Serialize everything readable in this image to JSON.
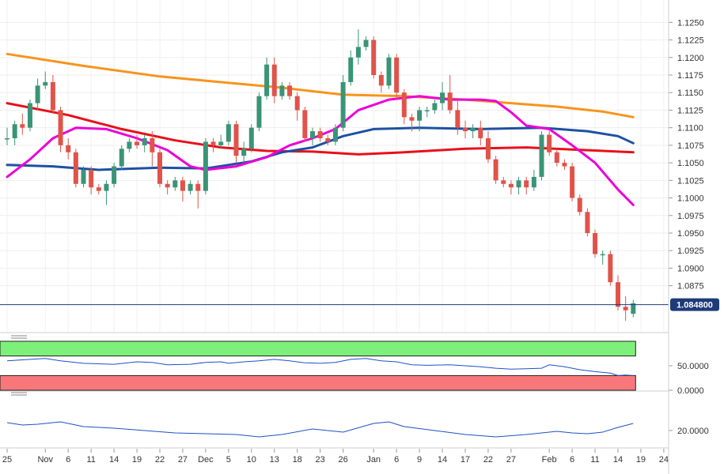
{
  "chart_data": {
    "type": "candlestick",
    "last_price_label": "1.084800",
    "last_price": 1.0848,
    "y_axis": {
      "ylim": [
        1.0815,
        1.1265
      ],
      "ticks": [
        "1.1250",
        "1.1225",
        "1.1200",
        "1.1175",
        "1.1150",
        "1.1125",
        "1.1100",
        "1.1075",
        "1.1050",
        "1.1025",
        "1.1000",
        "1.0975",
        "1.0950",
        "1.0925",
        "1.0900",
        "1.0875"
      ]
    },
    "x_axis": {
      "ticks": [
        {
          "label": "25",
          "i": 0
        },
        {
          "label": "Nov",
          "i": 5
        },
        {
          "label": "6",
          "i": 8
        },
        {
          "label": "11",
          "i": 11
        },
        {
          "label": "14",
          "i": 14
        },
        {
          "label": "19",
          "i": 17
        },
        {
          "label": "22",
          "i": 20
        },
        {
          "label": "27",
          "i": 23
        },
        {
          "label": "Dec",
          "i": 26
        },
        {
          "label": "5",
          "i": 29
        },
        {
          "label": "10",
          "i": 32
        },
        {
          "label": "13",
          "i": 35
        },
        {
          "label": "18",
          "i": 38
        },
        {
          "label": "23",
          "i": 41
        },
        {
          "label": "26",
          "i": 44
        },
        {
          "label": "Jan",
          "i": 48
        },
        {
          "label": "6",
          "i": 51
        },
        {
          "label": "9",
          "i": 54
        },
        {
          "label": "14",
          "i": 57
        },
        {
          "label": "17",
          "i": 60
        },
        {
          "label": "22",
          "i": 63
        },
        {
          "label": "27",
          "i": 66
        },
        {
          "label": "Feb",
          "i": 71
        },
        {
          "label": "6",
          "i": 74
        },
        {
          "label": "11",
          "i": 77
        },
        {
          "label": "14",
          "i": 80
        },
        {
          "label": "19",
          "i": 83
        },
        {
          "label": "24",
          "i": 86
        }
      ]
    },
    "candles": [
      [
        1.1085,
        1.1085,
        1.1075,
        1.11
      ],
      [
        1.1085,
        1.1105,
        1.1075,
        1.111
      ],
      [
        1.1105,
        1.11,
        1.109,
        1.112
      ],
      [
        1.11,
        1.1135,
        1.1095,
        1.114
      ],
      [
        1.1135,
        1.116,
        1.1125,
        1.117
      ],
      [
        1.116,
        1.1165,
        1.1155,
        1.118
      ],
      [
        1.1165,
        1.1125,
        1.112,
        1.1175
      ],
      [
        1.1125,
        1.1075,
        1.1065,
        1.113
      ],
      [
        1.1075,
        1.1065,
        1.1055,
        1.1085
      ],
      [
        1.1065,
        1.102,
        1.1015,
        1.107
      ],
      [
        1.102,
        1.104,
        1.1015,
        1.1045
      ],
      [
        1.104,
        1.1015,
        1.1005,
        1.1045
      ],
      [
        1.1015,
        1.101,
        1.1005,
        1.102
      ],
      [
        1.101,
        1.102,
        1.099,
        1.1025
      ],
      [
        1.102,
        1.1045,
        1.1015,
        1.105
      ],
      [
        1.1045,
        1.107,
        1.104,
        1.1075
      ],
      [
        1.107,
        1.108,
        1.1065,
        1.1085
      ],
      [
        1.108,
        1.1075,
        1.107,
        1.109
      ],
      [
        1.1075,
        1.1085,
        1.1065,
        1.109
      ],
      [
        1.1085,
        1.1065,
        1.1045,
        1.1095
      ],
      [
        1.1065,
        1.102,
        1.1015,
        1.107
      ],
      [
        1.102,
        1.1015,
        1.1005,
        1.1025
      ],
      [
        1.1015,
        1.1025,
        1.101,
        1.103
      ],
      [
        1.1025,
        1.101,
        1.0995,
        1.103
      ],
      [
        1.101,
        1.102,
        1.1005,
        1.1025
      ],
      [
        1.102,
        1.101,
        1.0985,
        1.1025
      ],
      [
        1.101,
        1.108,
        1.1005,
        1.1085
      ],
      [
        1.108,
        1.1075,
        1.1065,
        1.1085
      ],
      [
        1.1075,
        1.108,
        1.107,
        1.109
      ],
      [
        1.108,
        1.1105,
        1.1075,
        1.111
      ],
      [
        1.1105,
        1.106,
        1.105,
        1.111
      ],
      [
        1.106,
        1.107,
        1.105,
        1.108
      ],
      [
        1.107,
        1.11,
        1.1065,
        1.1105
      ],
      [
        1.11,
        1.1145,
        1.1095,
        1.115
      ],
      [
        1.1145,
        1.119,
        1.114,
        1.12
      ],
      [
        1.119,
        1.1145,
        1.1135,
        1.12
      ],
      [
        1.1145,
        1.116,
        1.114,
        1.1165
      ],
      [
        1.116,
        1.1145,
        1.114,
        1.1165
      ],
      [
        1.1145,
        1.1125,
        1.111,
        1.115
      ],
      [
        1.1125,
        1.1085,
        1.108,
        1.113
      ],
      [
        1.1085,
        1.1095,
        1.1075,
        1.11
      ],
      [
        1.1095,
        1.1085,
        1.108,
        1.11
      ],
      [
        1.1085,
        1.108,
        1.1075,
        1.109
      ],
      [
        1.108,
        1.11,
        1.1075,
        1.1105
      ],
      [
        1.11,
        1.1165,
        1.1095,
        1.1175
      ],
      [
        1.1165,
        1.12,
        1.116,
        1.121
      ],
      [
        1.12,
        1.1215,
        1.119,
        1.124
      ],
      [
        1.1215,
        1.1225,
        1.121,
        1.123
      ],
      [
        1.1225,
        1.1175,
        1.117,
        1.123
      ],
      [
        1.1175,
        1.116,
        1.115,
        1.118
      ],
      [
        1.116,
        1.12,
        1.1155,
        1.1205
      ],
      [
        1.12,
        1.115,
        1.114,
        1.1205
      ],
      [
        1.115,
        1.1115,
        1.1105,
        1.1155
      ],
      [
        1.1115,
        1.111,
        1.1095,
        1.112
      ],
      [
        1.111,
        1.1125,
        1.1095,
        1.113
      ],
      [
        1.1125,
        1.1125,
        1.1115,
        1.113
      ],
      [
        1.1125,
        1.1135,
        1.112,
        1.114
      ],
      [
        1.1135,
        1.115,
        1.1125,
        1.1165
      ],
      [
        1.115,
        1.1125,
        1.112,
        1.1175
      ],
      [
        1.1125,
        1.11,
        1.109,
        1.114
      ],
      [
        1.11,
        1.1095,
        1.1085,
        1.111
      ],
      [
        1.1095,
        1.11,
        1.1085,
        1.1105
      ],
      [
        1.11,
        1.1085,
        1.1075,
        1.111
      ],
      [
        1.1085,
        1.1055,
        1.105,
        1.1095
      ],
      [
        1.1055,
        1.1025,
        1.102,
        1.106
      ],
      [
        1.1025,
        1.102,
        1.1015,
        1.103
      ],
      [
        1.102,
        1.1015,
        1.1005,
        1.1025
      ],
      [
        1.1015,
        1.1025,
        1.1005,
        1.103
      ],
      [
        1.1025,
        1.1015,
        1.1005,
        1.103
      ],
      [
        1.1015,
        1.103,
        1.101,
        1.104
      ],
      [
        1.103,
        1.109,
        1.1025,
        1.1095
      ],
      [
        1.109,
        1.1065,
        1.106,
        1.1095
      ],
      [
        1.1065,
        1.105,
        1.1045,
        1.107
      ],
      [
        1.105,
        1.1045,
        1.104,
        1.1055
      ],
      [
        1.1045,
        1.1,
        1.0995,
        1.105
      ],
      [
        1.1,
        1.098,
        1.0975,
        1.1005
      ],
      [
        1.098,
        1.095,
        1.0945,
        1.0985
      ],
      [
        1.095,
        1.092,
        1.0915,
        1.0955
      ],
      [
        1.092,
        1.092,
        1.0905,
        1.0925
      ],
      [
        1.092,
        1.088,
        1.0875,
        1.0925
      ],
      [
        1.088,
        1.0845,
        1.084,
        1.089
      ],
      [
        1.0845,
        1.084,
        1.0825,
        1.086
      ],
      [
        1.0835,
        1.085,
        1.083,
        1.0855
      ]
    ],
    "overlays": [
      {
        "color": "#f7941d",
        "values": [
          [
            0,
            1.1205
          ],
          [
            10,
            1.1188
          ],
          [
            20,
            1.1173
          ],
          [
            30,
            1.1163
          ],
          [
            36,
            1.1157
          ],
          [
            44,
            1.1147
          ],
          [
            52,
            1.1145
          ],
          [
            60,
            1.114
          ],
          [
            66,
            1.1135
          ],
          [
            72,
            1.113
          ],
          [
            78,
            1.1123
          ],
          [
            82,
            1.1115
          ]
        ]
      },
      {
        "color": "#e8101b",
        "values": [
          [
            0,
            1.1135
          ],
          [
            8,
            1.1118
          ],
          [
            15,
            1.1098
          ],
          [
            22,
            1.1082
          ],
          [
            28,
            1.1072
          ],
          [
            34,
            1.1067
          ],
          [
            40,
            1.1066
          ],
          [
            46,
            1.1062
          ],
          [
            52,
            1.1065
          ],
          [
            60,
            1.107
          ],
          [
            68,
            1.1072
          ],
          [
            76,
            1.1068
          ],
          [
            82,
            1.1065
          ]
        ]
      },
      {
        "color": "#1e50a2",
        "values": [
          [
            0,
            1.1047
          ],
          [
            6,
            1.1045
          ],
          [
            12,
            1.104
          ],
          [
            20,
            1.1043
          ],
          [
            26,
            1.1042
          ],
          [
            32,
            1.1052
          ],
          [
            36,
            1.1065
          ],
          [
            40,
            1.1072
          ],
          [
            44,
            1.1088
          ],
          [
            48,
            1.1098
          ],
          [
            54,
            1.11
          ],
          [
            62,
            1.1098
          ],
          [
            70,
            1.11
          ],
          [
            76,
            1.1095
          ],
          [
            80,
            1.1088
          ],
          [
            82,
            1.1078
          ]
        ]
      },
      {
        "color": "#ec00d6",
        "values": [
          [
            0,
            1.103
          ],
          [
            3,
            1.1055
          ],
          [
            6,
            1.1085
          ],
          [
            9,
            1.11
          ],
          [
            13,
            1.1098
          ],
          [
            17,
            1.1085
          ],
          [
            21,
            1.1068
          ],
          [
            24,
            1.1045
          ],
          [
            26,
            1.104
          ],
          [
            30,
            1.1045
          ],
          [
            34,
            1.1058
          ],
          [
            37,
            1.1075
          ],
          [
            40,
            1.1085
          ],
          [
            43,
            1.1098
          ],
          [
            46,
            1.1125
          ],
          [
            50,
            1.114
          ],
          [
            54,
            1.1145
          ],
          [
            58,
            1.114
          ],
          [
            60,
            1.114
          ],
          [
            62,
            1.114
          ],
          [
            64,
            1.1138
          ],
          [
            66,
            1.1122
          ],
          [
            68,
            1.1103
          ],
          [
            71,
            1.1098
          ],
          [
            74,
            1.1075
          ],
          [
            77,
            1.105
          ],
          [
            80,
            1.1012
          ],
          [
            82,
            1.099
          ]
        ]
      }
    ],
    "panel1": {
      "ticks": [
        "50.0000",
        "0.0000"
      ],
      "ylim": [
        0,
        100
      ],
      "upper_band": [
        70,
        100
      ],
      "lower_band": [
        0,
        30
      ],
      "values": [
        [
          0,
          60
        ],
        [
          3,
          63
        ],
        [
          5,
          65
        ],
        [
          7,
          60
        ],
        [
          10,
          55
        ],
        [
          14,
          53
        ],
        [
          17,
          58
        ],
        [
          19,
          57
        ],
        [
          21,
          52
        ],
        [
          24,
          53
        ],
        [
          26,
          57
        ],
        [
          28,
          58
        ],
        [
          29,
          55
        ],
        [
          31,
          58
        ],
        [
          33,
          60
        ],
        [
          35,
          63
        ],
        [
          37,
          60
        ],
        [
          39,
          56
        ],
        [
          41,
          55
        ],
        [
          43,
          57
        ],
        [
          45,
          63
        ],
        [
          47,
          65
        ],
        [
          49,
          60
        ],
        [
          51,
          58
        ],
        [
          53,
          52
        ],
        [
          55,
          51
        ],
        [
          58,
          52
        ],
        [
          60,
          50
        ],
        [
          62,
          48
        ],
        [
          64,
          45
        ],
        [
          66,
          43
        ],
        [
          68,
          44
        ],
        [
          70,
          45
        ],
        [
          71,
          52
        ],
        [
          73,
          48
        ],
        [
          75,
          42
        ],
        [
          77,
          38
        ],
        [
          79,
          35
        ],
        [
          80,
          30
        ],
        [
          81,
          31
        ],
        [
          82,
          30
        ]
      ]
    },
    "panel2": {
      "ticks": [
        "20.0000"
      ],
      "ylim": [
        0,
        60
      ],
      "values": [
        [
          0,
          30
        ],
        [
          2,
          27
        ],
        [
          4,
          28
        ],
        [
          7,
          31
        ],
        [
          10,
          25
        ],
        [
          14,
          23
        ],
        [
          18,
          20
        ],
        [
          22,
          17
        ],
        [
          26,
          16
        ],
        [
          30,
          15
        ],
        [
          33,
          12
        ],
        [
          36,
          15
        ],
        [
          40,
          22
        ],
        [
          44,
          18
        ],
        [
          48,
          29
        ],
        [
          50,
          31
        ],
        [
          52,
          25
        ],
        [
          56,
          20
        ],
        [
          60,
          15
        ],
        [
          64,
          12
        ],
        [
          68,
          15
        ],
        [
          72,
          19
        ],
        [
          74,
          17
        ],
        [
          76,
          16
        ],
        [
          78,
          18
        ],
        [
          80,
          24
        ],
        [
          82,
          29
        ]
      ]
    }
  }
}
